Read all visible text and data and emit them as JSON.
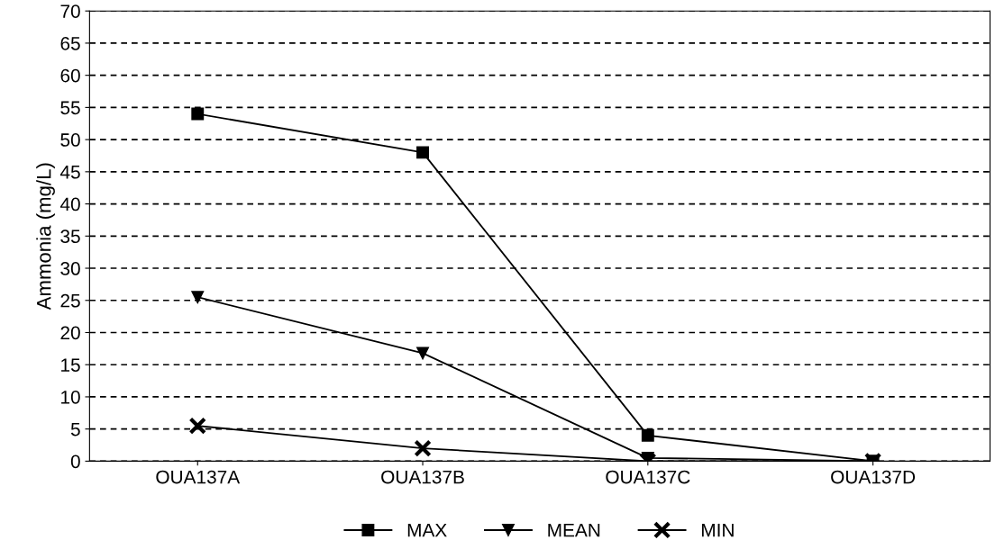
{
  "chart_data": {
    "type": "line",
    "ylabel": "Ammonia (mg/L)",
    "categories": [
      "OUA137A",
      "OUA137B",
      "OUA137C",
      "OUA137D"
    ],
    "series": [
      {
        "name": "MAX",
        "color": "#000000",
        "marker": "square",
        "values": [
          54,
          48,
          4,
          0
        ]
      },
      {
        "name": "MEAN",
        "color": "#000000",
        "marker": "triangle",
        "values": [
          25.5,
          16.8,
          0.5,
          0
        ]
      },
      {
        "name": "MIN",
        "color": "#000000",
        "marker": "cross",
        "values": [
          5.5,
          2,
          0,
          0
        ]
      }
    ],
    "ylim": [
      0,
      70
    ],
    "yticks": [
      0,
      5,
      10,
      15,
      20,
      25,
      30,
      35,
      40,
      45,
      50,
      55,
      60,
      65,
      70
    ],
    "grid": "y",
    "legend": "bottom",
    "line_style": "solid"
  }
}
